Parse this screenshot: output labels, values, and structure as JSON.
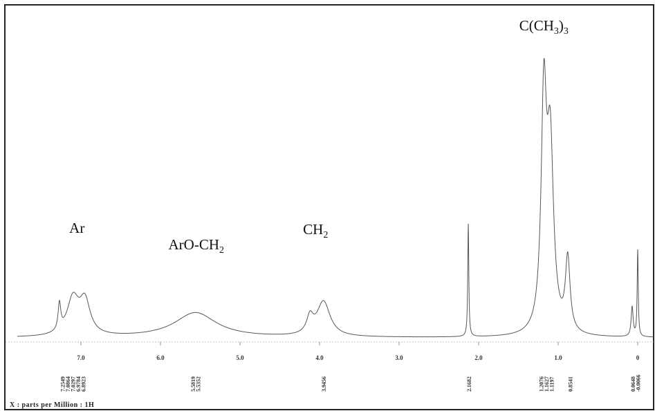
{
  "chart_data": {
    "type": "line",
    "title": "",
    "xlabel": "X : parts per Million : 1H",
    "ylabel": "",
    "xlim": [
      7.8,
      -0.2
    ],
    "x_reversed": true,
    "grid": false,
    "legend": "none",
    "line_color": "#555555",
    "x_ticks": [
      {
        "value": 7.0,
        "label": "7.0"
      },
      {
        "value": 6.0,
        "label": "6.0"
      },
      {
        "value": 5.0,
        "label": "5.0"
      },
      {
        "value": 4.0,
        "label": "4.0"
      },
      {
        "value": 3.0,
        "label": "3.0"
      },
      {
        "value": 2.0,
        "label": "2.0"
      },
      {
        "value": 1.0,
        "label": "1.0"
      },
      {
        "value": 0.0,
        "label": "0"
      }
    ],
    "annotations": [
      {
        "text": "Ar",
        "x": 7.05
      },
      {
        "text": "ArO-CH",
        "sub": "2",
        "x": 5.55
      },
      {
        "text": "CH",
        "sub": "2",
        "x": 4.05
      },
      {
        "text": "C(CH",
        "sub": "3",
        "tail": ")",
        "sub2": "3",
        "x": 1.18
      }
    ],
    "peak_shifts": [
      {
        "x": 7.1,
        "labels": [
          "7.2549",
          "7.0864",
          "7.0297",
          "6.9784",
          "6.8923"
        ]
      },
      {
        "x": 5.56,
        "labels": [
          "5.5819",
          "5.5352"
        ]
      },
      {
        "x": 3.95,
        "labels": [
          "3.9456"
        ]
      },
      {
        "x": 2.12,
        "labels": [
          "2.1682"
        ]
      },
      {
        "x": 1.15,
        "labels": [
          "1.2076",
          "1.1627",
          "1.1197"
        ]
      },
      {
        "x": 0.85,
        "labels": [
          "0.8541"
        ]
      },
      {
        "x": 0.03,
        "labels": [
          "0.0648",
          "-0.0066"
        ]
      }
    ],
    "peaks": [
      {
        "x": 7.27,
        "height": 0.08,
        "width": 0.02
      },
      {
        "x": 7.1,
        "height": 0.11,
        "width": 0.09
      },
      {
        "x": 6.95,
        "height": 0.1,
        "width": 0.08
      },
      {
        "x": 5.56,
        "height": 0.075,
        "width": 0.32
      },
      {
        "x": 4.12,
        "height": 0.05,
        "width": 0.05
      },
      {
        "x": 3.95,
        "height": 0.105,
        "width": 0.1
      },
      {
        "x": 2.13,
        "height": 0.34,
        "width": 0.008
      },
      {
        "x": 1.18,
        "height": 0.68,
        "width": 0.04
      },
      {
        "x": 1.1,
        "height": 0.55,
        "width": 0.05
      },
      {
        "x": 0.88,
        "height": 0.22,
        "width": 0.035
      },
      {
        "x": 0.07,
        "height": 0.09,
        "width": 0.015
      },
      {
        "x": 0.0,
        "height": 0.26,
        "width": 0.008
      }
    ]
  }
}
